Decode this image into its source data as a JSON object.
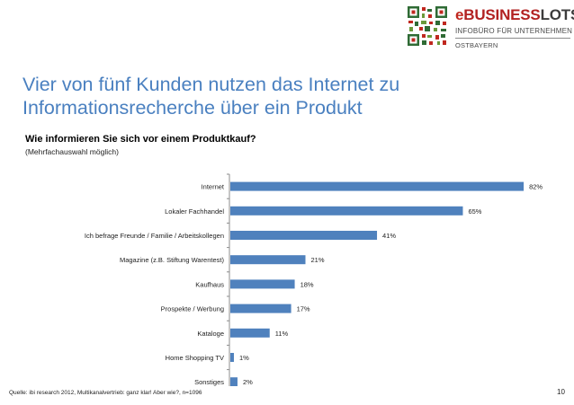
{
  "logo": {
    "brand_e": "e",
    "brand_business": "BUSINESS",
    "brand_lotse": "LOTSE",
    "line1": "INFOBÜRO FÜR UNTERNEHMEN",
    "line2": "OSTBAYERN",
    "colors": {
      "red": "#c0271f",
      "gray": "#3c3c3c"
    }
  },
  "title": {
    "line1": "Vier von fünf Kunden nutzen das Internet zu",
    "line2": "Informationsrecherche über ein Produkt"
  },
  "question": "Wie informieren Sie sich vor einem Produktkauf?",
  "subquestion": "(Mehrfachauswahl möglich)",
  "chart_data": {
    "type": "bar",
    "orientation": "horizontal",
    "categories": [
      "Internet",
      "Lokaler Fachhandel",
      "Ich befrage Freunde / Familie / Arbeitskollegen",
      "Magazine (z.B. Stiftung Warentest)",
      "Kaufhaus",
      "Prospekte / Werbung",
      "Kataloge",
      "Home Shopping TV",
      "Sonstiges"
    ],
    "values": [
      82,
      65,
      41,
      21,
      18,
      17,
      11,
      1,
      2
    ],
    "value_labels": [
      "82%",
      "65%",
      "41%",
      "21%",
      "18%",
      "17%",
      "11%",
      "1%",
      "2%"
    ],
    "xlim": [
      0,
      85
    ],
    "bar_color": "#4f81bd",
    "grid": false,
    "legend": "none"
  },
  "source": "Quelle: ibi research 2012,  Multikanalvertrieb: ganz klar! Aber wie?, n=1096",
  "page_number": "10"
}
